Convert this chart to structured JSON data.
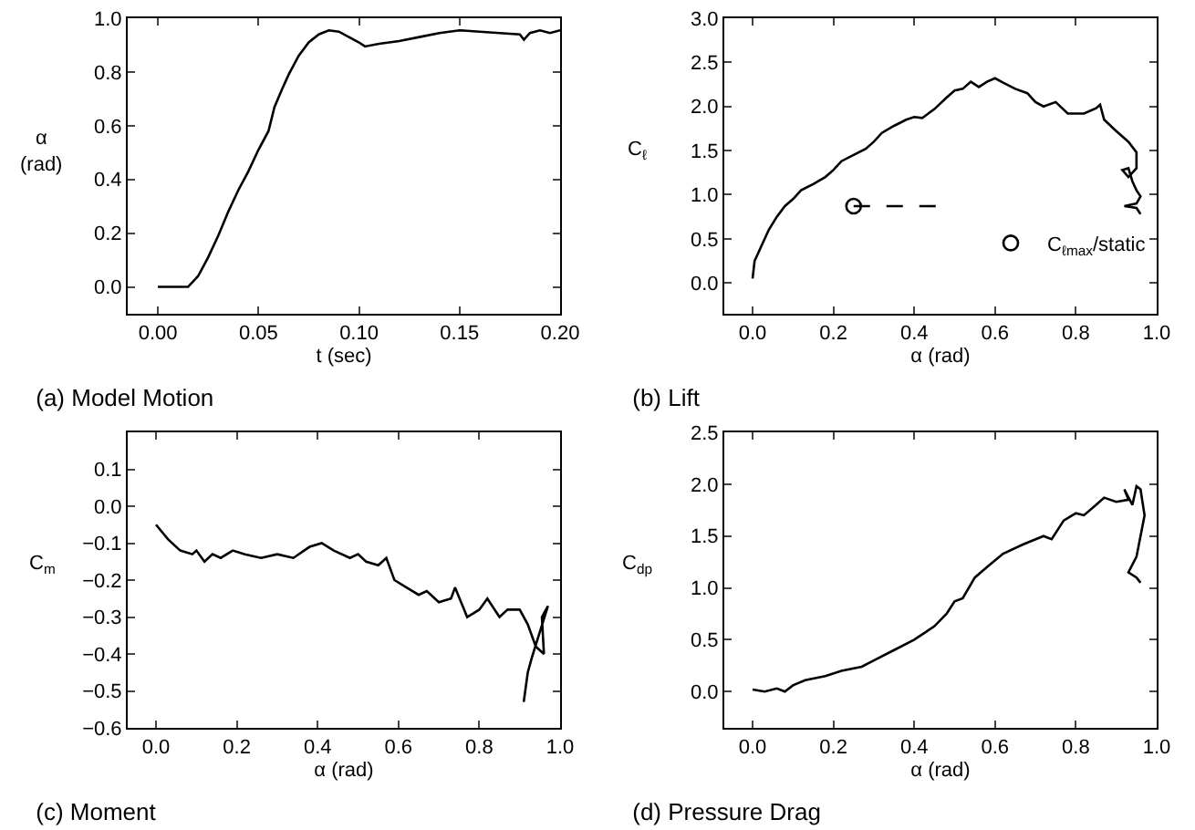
{
  "chart_data": [
    {
      "type": "line",
      "title": "(a) Model Motion",
      "xlabel": "t (sec)",
      "ylabel": "α\n(rad)",
      "xlim": [
        -0.015,
        0.2
      ],
      "xticks": [
        {
          "value": 0,
          "label": "0.00"
        },
        0.05,
        {
          "value": 0.1,
          "label": "0.10"
        },
        0.15,
        {
          "value": 0.2,
          "label": "0.20"
        }
      ],
      "ylim": [
        -0.1,
        1.0
      ],
      "yticks": [
        {
          "value": 0,
          "label": "0.0"
        },
        0.2,
        0.4,
        0.6,
        0.8,
        {
          "value": 1,
          "label": "1.0"
        }
      ],
      "grid": false,
      "legend": false,
      "series": [
        {
          "color": "#000000",
          "x": [
            0,
            0.01,
            0.015,
            0.02,
            0.025,
            0.03,
            0.035,
            0.04,
            0.045,
            0.05,
            0.055,
            0.058,
            0.062,
            0.065,
            0.07,
            0.075,
            0.08,
            0.085,
            0.09,
            0.095,
            0.1,
            0.103,
            0.11,
            0.12,
            0.13,
            0.14,
            0.15,
            0.16,
            0.17,
            0.18,
            0.182,
            0.185,
            0.19,
            0.195,
            0.2
          ],
          "values": [
            0,
            0,
            0,
            0.04,
            0.11,
            0.19,
            0.28,
            0.36,
            0.43,
            0.51,
            0.58,
            0.67,
            0.74,
            0.79,
            0.86,
            0.91,
            0.94,
            0.955,
            0.95,
            0.93,
            0.91,
            0.895,
            0.905,
            0.915,
            0.93,
            0.945,
            0.955,
            0.95,
            0.945,
            0.94,
            0.92,
            0.945,
            0.955,
            0.945,
            0.955
          ]
        }
      ]
    },
    {
      "type": "line",
      "title": "(b) Lift",
      "xlabel": "α (rad)",
      "ylabel": "C$_{ℓ}$",
      "xlim": [
        -0.07,
        1.0
      ],
      "xticks": [
        {
          "value": 0,
          "label": "0.0"
        },
        0.2,
        0.4,
        0.6,
        0.8,
        {
          "value": 1,
          "label": "1.0"
        }
      ],
      "ylim": [
        -0.35,
        3.0
      ],
      "yticks": [
        {
          "value": 0,
          "label": "0.0"
        },
        0.5,
        {
          "value": 1,
          "label": "1.0"
        },
        1.5,
        {
          "value": 2,
          "label": "2.0"
        },
        2.5,
        {
          "value": 3,
          "label": "3.0"
        }
      ],
      "grid": false,
      "legend": "bottom right",
      "series": [
        {
          "color": "#000000",
          "x": [
            0,
            0.005,
            0.02,
            0.04,
            0.06,
            0.08,
            0.1,
            0.12,
            0.15,
            0.18,
            0.2,
            0.22,
            0.25,
            0.28,
            0.3,
            0.32,
            0.35,
            0.38,
            0.4,
            0.42,
            0.45,
            0.48,
            0.5,
            0.52,
            0.54,
            0.56,
            0.58,
            0.6,
            0.62,
            0.65,
            0.68,
            0.7,
            0.72,
            0.75,
            0.78,
            0.82,
            0.85,
            0.86,
            0.87,
            0.9,
            0.93,
            0.95,
            0.95,
            0.93,
            0.915,
            0.93,
            0.94,
            0.95,
            0.96,
            0.95,
            0.92,
            0.95,
            0.96
          ],
          "values": [
            0.05,
            0.25,
            0.4,
            0.6,
            0.75,
            0.87,
            0.95,
            1.05,
            1.12,
            1.2,
            1.28,
            1.38,
            1.45,
            1.52,
            1.6,
            1.7,
            1.78,
            1.85,
            1.88,
            1.87,
            1.97,
            2.1,
            2.18,
            2.2,
            2.28,
            2.22,
            2.28,
            2.32,
            2.27,
            2.2,
            2.15,
            2.05,
            2.0,
            2.05,
            1.92,
            1.92,
            1.98,
            2.02,
            1.85,
            1.72,
            1.6,
            1.48,
            1.3,
            1.2,
            1.28,
            1.3,
            1.15,
            1.05,
            0.98,
            0.9,
            0.87,
            0.85,
            0.78
          ]
        },
        {
          "type": "line",
          "color": "#000000",
          "line_style": "dashed",
          "x": [
            0.25,
            0.46
          ],
          "values": [
            0.87,
            0.87
          ]
        },
        {
          "type": "scatter",
          "name": "C$_{ℓmax}$/static",
          "color": "#000000",
          "marker": "circle",
          "x": [
            0.25
          ],
          "values": [
            0.87
          ]
        }
      ]
    },
    {
      "type": "line",
      "title": "(c) Moment",
      "xlabel": "α (rad)",
      "ylabel": "C$_{m}$",
      "xlim": [
        -0.07,
        1.0
      ],
      "xticks": [
        {
          "value": 0,
          "label": "0.0"
        },
        0.2,
        0.4,
        0.6,
        0.8,
        {
          "value": 1,
          "label": "1.0"
        }
      ],
      "ylim": [
        -0.6,
        0.2
      ],
      "yticks": [
        {
          "value": -0.6,
          "label": "−0.6"
        },
        {
          "value": -0.5,
          "label": "−0.5"
        },
        {
          "value": -0.4,
          "label": "−0.4"
        },
        {
          "value": -0.3,
          "label": "−0.3"
        },
        {
          "value": -0.2,
          "label": "−0.2"
        },
        {
          "value": -0.1,
          "label": "−0.1"
        },
        {
          "value": 0,
          "label": "0.0"
        },
        0.1
      ],
      "grid": false,
      "legend": false,
      "series": [
        {
          "color": "#000000",
          "x": [
            0,
            0.03,
            0.06,
            0.09,
            0.1,
            0.12,
            0.14,
            0.16,
            0.19,
            0.22,
            0.26,
            0.3,
            0.34,
            0.38,
            0.41,
            0.44,
            0.48,
            0.5,
            0.52,
            0.55,
            0.57,
            0.59,
            0.62,
            0.65,
            0.67,
            0.7,
            0.73,
            0.74,
            0.77,
            0.8,
            0.82,
            0.85,
            0.87,
            0.9,
            0.92,
            0.94,
            0.96,
            0.955,
            0.97,
            0.95,
            0.93,
            0.92,
            0.91
          ],
          "values": [
            -0.05,
            -0.09,
            -0.12,
            -0.13,
            -0.12,
            -0.15,
            -0.13,
            -0.14,
            -0.12,
            -0.13,
            -0.14,
            -0.13,
            -0.14,
            -0.11,
            -0.1,
            -0.12,
            -0.14,
            -0.13,
            -0.15,
            -0.16,
            -0.14,
            -0.2,
            -0.22,
            -0.24,
            -0.23,
            -0.26,
            -0.25,
            -0.22,
            -0.3,
            -0.28,
            -0.25,
            -0.3,
            -0.28,
            -0.28,
            -0.32,
            -0.38,
            -0.4,
            -0.3,
            -0.27,
            -0.34,
            -0.41,
            -0.45,
            -0.53
          ]
        }
      ]
    },
    {
      "type": "line",
      "title": "(d) Pressure Drag",
      "xlabel": "α (rad)",
      "ylabel": "C$_{dp}$",
      "xlim": [
        -0.07,
        1.0
      ],
      "xticks": [
        {
          "value": 0,
          "label": "0.0"
        },
        0.2,
        0.4,
        0.6,
        0.8,
        {
          "value": 1,
          "label": "1.0"
        }
      ],
      "ylim": [
        -0.35,
        2.5
      ],
      "yticks": [
        {
          "value": 0,
          "label": "0.0"
        },
        0.5,
        {
          "value": 1,
          "label": "1.0"
        },
        1.5,
        {
          "value": 2,
          "label": "2.0"
        },
        2.5
      ],
      "grid": false,
      "legend": false,
      "series": [
        {
          "color": "#000000",
          "x": [
            0,
            0.03,
            0.06,
            0.08,
            0.1,
            0.13,
            0.18,
            0.22,
            0.27,
            0.3,
            0.35,
            0.4,
            0.45,
            0.48,
            0.5,
            0.52,
            0.55,
            0.58,
            0.62,
            0.67,
            0.72,
            0.74,
            0.77,
            0.8,
            0.82,
            0.85,
            0.87,
            0.9,
            0.93,
            0.92,
            0.94,
            0.95,
            0.96,
            0.97,
            0.96,
            0.95,
            0.93,
            0.95,
            0.96
          ],
          "values": [
            0.02,
            0,
            0.03,
            0,
            0.06,
            0.11,
            0.15,
            0.2,
            0.24,
            0.3,
            0.4,
            0.5,
            0.63,
            0.75,
            0.87,
            0.9,
            1.1,
            1.2,
            1.33,
            1.42,
            1.5,
            1.47,
            1.65,
            1.72,
            1.7,
            1.8,
            1.87,
            1.83,
            1.85,
            1.95,
            1.8,
            1.98,
            1.95,
            1.7,
            1.5,
            1.3,
            1.15,
            1.1,
            1.05
          ]
        }
      ]
    }
  ]
}
